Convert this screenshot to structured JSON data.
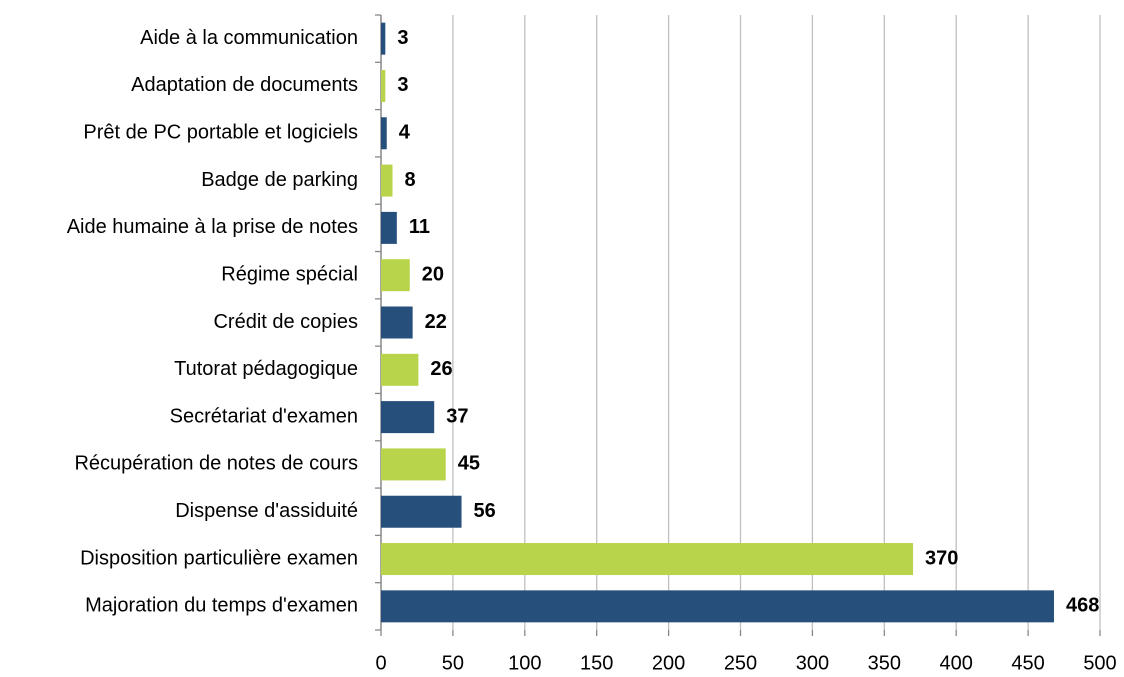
{
  "chart_data": {
    "type": "bar",
    "orientation": "horizontal",
    "categories": [
      "Aide à la communication",
      "Adaptation de documents",
      "Prêt de PC portable et logiciels",
      "Badge de parking",
      "Aide humaine à la prise de notes",
      "Régime spécial",
      "Crédit de copies",
      "Tutorat pédagogique",
      "Secrétariat d'examen",
      "Récupération de notes de cours",
      "Dispense d'assiduité",
      "Disposition particulière examen",
      "Majoration du temps d'examen"
    ],
    "values": [
      3,
      3,
      4,
      8,
      11,
      20,
      22,
      26,
      37,
      45,
      56,
      370,
      468
    ],
    "colors": [
      "#264f7c",
      "#b8d44a",
      "#264f7c",
      "#b8d44a",
      "#264f7c",
      "#b8d44a",
      "#264f7c",
      "#b8d44a",
      "#264f7c",
      "#b8d44a",
      "#264f7c",
      "#b8d44a",
      "#264f7c"
    ],
    "xlim": [
      0,
      500
    ],
    "xticks": [
      0,
      50,
      100,
      150,
      200,
      250,
      300,
      350,
      400,
      450,
      500
    ],
    "grid": true
  }
}
